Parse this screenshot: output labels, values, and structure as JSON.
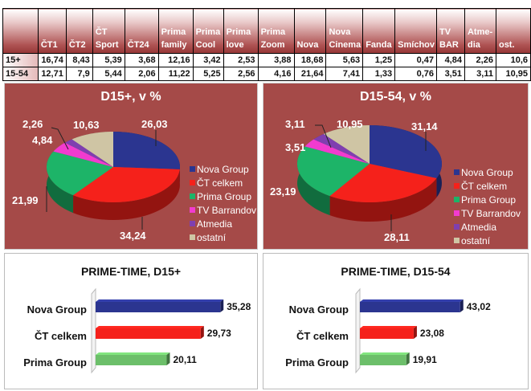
{
  "table": {
    "headers": [
      "",
      "ČT1",
      "ČT2",
      "ČT Sport",
      "ČT24",
      "Prima family",
      "Prima Cool",
      "Prima love",
      "Prima Zoom",
      "Nova",
      "Nova Cinema",
      "Fanda",
      "Smíchov",
      "TV BAR",
      "Atme-dia",
      "ost."
    ],
    "rows": [
      {
        "label": "15+",
        "values": [
          "16,74",
          "8,43",
          "5,39",
          "3,68",
          "12,16",
          "3,42",
          "2,53",
          "3,88",
          "18,68",
          "5,63",
          "1,25",
          "0,47",
          "4,84",
          "2,26",
          "10,6"
        ]
      },
      {
        "label": "15-54",
        "values": [
          "12,71",
          "7,9",
          "5,44",
          "2,06",
          "11,22",
          "5,25",
          "2,56",
          "4,16",
          "21,64",
          "7,41",
          "1,33",
          "0,76",
          "3,51",
          "3,11",
          "10,95"
        ]
      }
    ]
  },
  "chart_data": [
    {
      "type": "pie",
      "title": "D15+, v %",
      "categories": [
        "Nova Group",
        "ČT celkem",
        "Prima Group",
        "TV Barrandov",
        "Atmedia",
        "ostatní"
      ],
      "values": [
        26.03,
        34.24,
        21.99,
        4.84,
        2.26,
        10.63
      ],
      "labels": [
        "26,03",
        "34,24",
        "21,99",
        "4,84",
        "2,26",
        "10,63"
      ],
      "colors": [
        "#2b3590",
        "#f5211b",
        "#1db468",
        "#f23bcf",
        "#7f3fb0",
        "#cfc5a4"
      ],
      "legend": "right"
    },
    {
      "type": "pie",
      "title": "D15-54, v %",
      "categories": [
        "Nova Group",
        "ČT celkem",
        "Prima Group",
        "TV Barrandov",
        "Atmedia",
        "ostatní"
      ],
      "values": [
        31.14,
        28.11,
        23.19,
        3.51,
        3.11,
        10.95
      ],
      "labels": [
        "31,14",
        "28,11",
        "23,19",
        "3,51",
        "3,11",
        "10,95"
      ],
      "colors": [
        "#2b3590",
        "#f5211b",
        "#1db468",
        "#f23bcf",
        "#7f3fb0",
        "#cfc5a4"
      ],
      "legend": "right"
    },
    {
      "type": "bar",
      "orientation": "horizontal",
      "title": "PRIME-TIME, D15+",
      "categories": [
        "Nova Group",
        "ČT celkem",
        "Prima Group"
      ],
      "values": [
        35.28,
        29.73,
        20.11
      ],
      "labels": [
        "35,28",
        "29,73",
        "20,11"
      ],
      "colors": [
        "#2b3590",
        "#f5211b",
        "#6cbf6a"
      ]
    },
    {
      "type": "bar",
      "orientation": "horizontal",
      "title": "PRIME-TIME, D15-54",
      "categories": [
        "Nova Group",
        "ČT celkem",
        "Prima Group"
      ],
      "values": [
        43.02,
        23.08,
        19.91
      ],
      "labels": [
        "43,02",
        "23,08",
        "19,91"
      ],
      "colors": [
        "#2b3590",
        "#f5211b",
        "#6cbf6a"
      ]
    }
  ]
}
